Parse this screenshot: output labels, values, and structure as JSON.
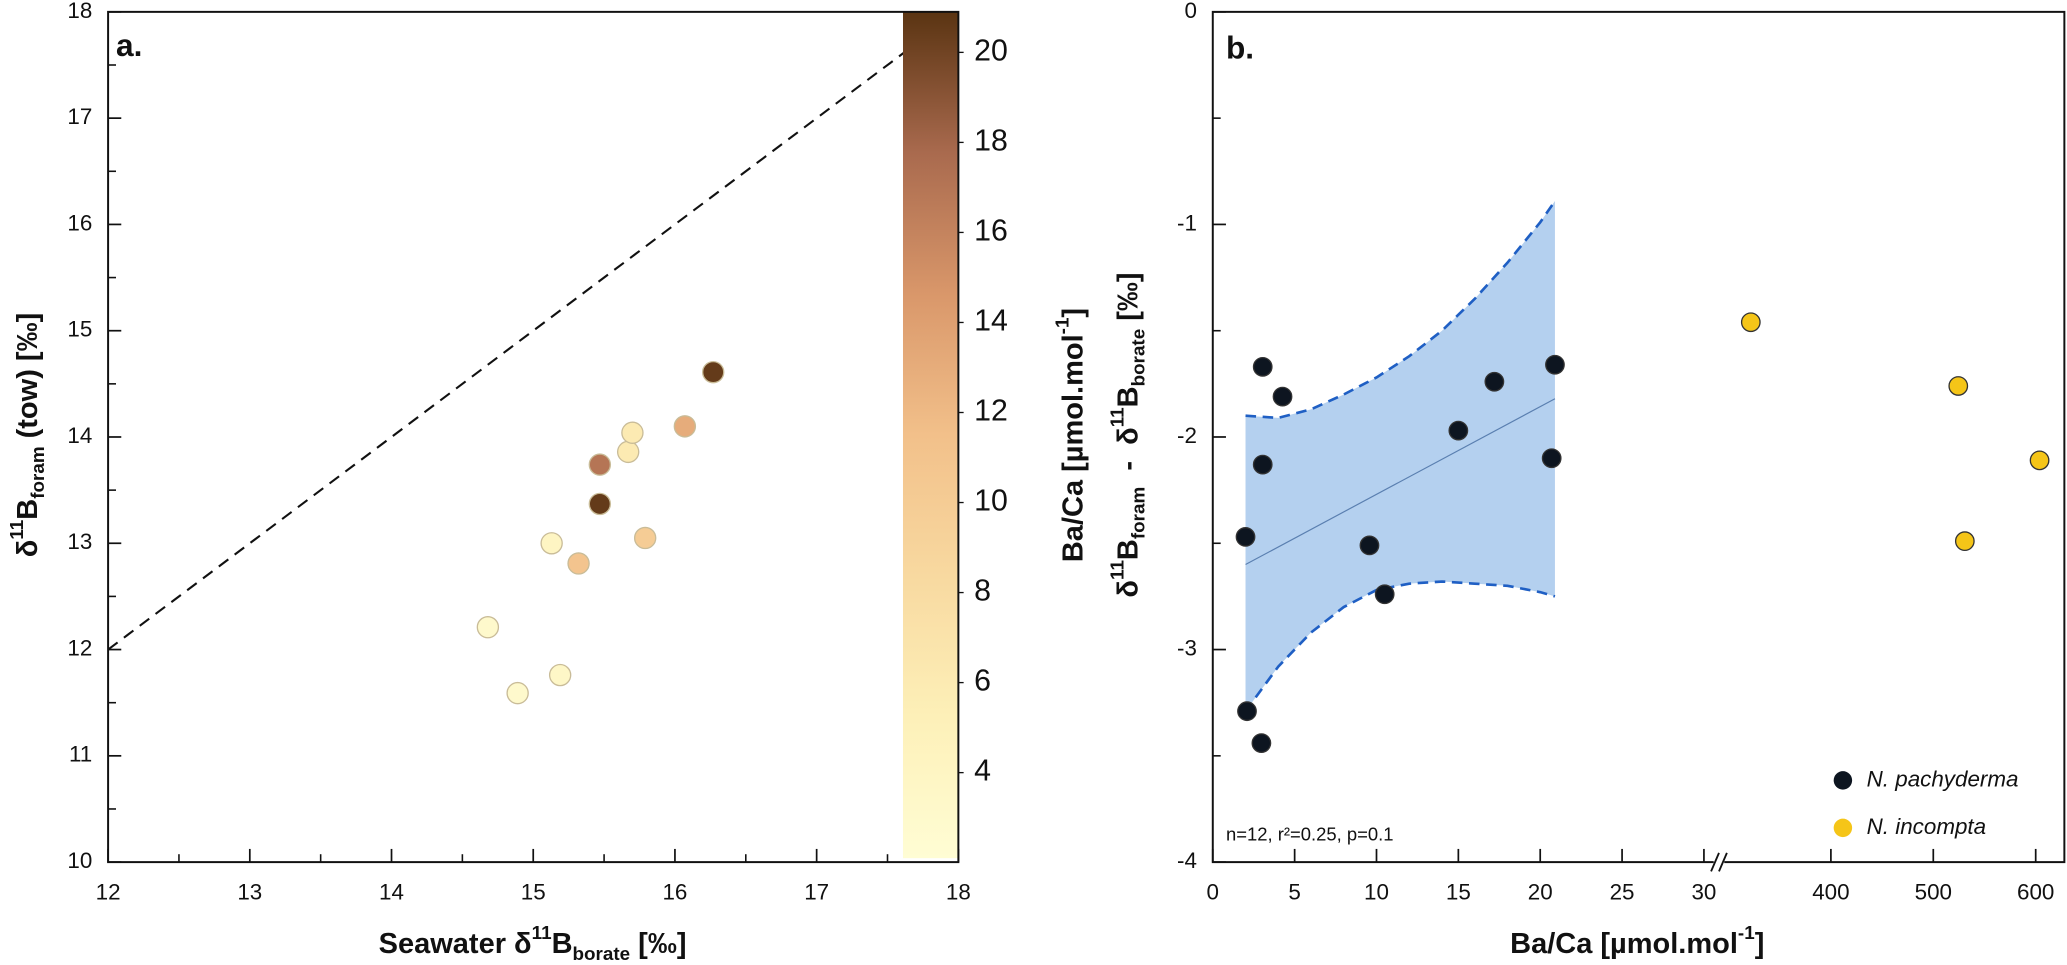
{
  "chart_data": [
    {
      "type": "scatter",
      "panel_label": "a.",
      "xlabel": [
        {
          "text": "Seawater δ"
        },
        {
          "text": "11",
          "pos": "sup"
        },
        {
          "text": "B"
        },
        {
          "text": "borate",
          "pos": "sub"
        },
        {
          "text": " [‰]"
        }
      ],
      "ylabel": [
        {
          "text": "δ"
        },
        {
          "text": "11",
          "pos": "sup"
        },
        {
          "text": "B"
        },
        {
          "text": "foram",
          "pos": "sub"
        },
        {
          "text": " (tow) [‰]"
        }
      ],
      "xlim": [
        12,
        18
      ],
      "xticks": [
        12,
        13,
        14,
        15,
        16,
        17,
        18
      ],
      "minor_xticks": [
        12.5,
        13.5,
        14.5,
        15.5,
        16.5,
        17.5
      ],
      "ylim": [
        10,
        18
      ],
      "yticks": [
        10,
        11,
        12,
        13,
        14,
        15,
        16,
        17,
        18
      ],
      "minor_yticks": [
        10.5,
        11.5,
        12.5,
        13.5,
        14.5,
        15.5,
        16.5,
        17.5
      ],
      "marker_edge": "#c9bc98",
      "series": [
        {
          "x": [
            14.68,
            14.89,
            15.19,
            15.13,
            15.32,
            15.47,
            15.47,
            15.67,
            15.7,
            15.79,
            16.07,
            16.27
          ],
          "values": [
            12.21,
            11.59,
            11.76,
            13.0,
            12.81,
            13.74,
            13.37,
            13.86,
            14.04,
            13.05,
            14.1,
            14.61
          ],
          "color_values": [
            3,
            3,
            3.5,
            4,
            11,
            17,
            20.5,
            6,
            6,
            10,
            13,
            20.5
          ]
        }
      ],
      "reference_line": {
        "x": [
          12,
          18
        ],
        "y": [
          12,
          18
        ],
        "color": "#111",
        "dashed": true
      },
      "colorbar": {
        "label": [
          {
            "text": "Ba/Ca [µmol.mol"
          },
          {
            "text": "-1",
            "pos": "sup"
          },
          {
            "text": "]"
          }
        ],
        "lim": [
          2.1,
          20.9
        ],
        "ticks": [
          4,
          6,
          8,
          10,
          12,
          14,
          16,
          18,
          20
        ],
        "colors": [
          "#fffdd4",
          "#fdf0b8",
          "#f8d9a0",
          "#f2c08a",
          "#d9976a",
          "#a96a4e",
          "#5a3412"
        ]
      }
    },
    {
      "type": "scatter",
      "panel_label": "b.",
      "xlabel": [
        {
          "text": "Ba/Ca [µmol.mol"
        },
        {
          "text": "-1",
          "pos": "sup"
        },
        {
          "text": "]"
        }
      ],
      "ylabel": [
        {
          "text": "δ"
        },
        {
          "text": "11",
          "pos": "sup"
        },
        {
          "text": "B"
        },
        {
          "text": "foram",
          "pos": "sub"
        },
        {
          "text": "  -  δ"
        },
        {
          "text": "11",
          "pos": "sup"
        },
        {
          "text": "B"
        },
        {
          "text": "borate",
          "pos": "sub"
        },
        {
          "text": " [‰]"
        }
      ],
      "x_segments": [
        {
          "xlim": [
            0,
            31
          ],
          "xticks": [
            0,
            5,
            10,
            15,
            20,
            25,
            30
          ]
        },
        {
          "xlim": [
            292,
            628
          ],
          "xticks": [
            400,
            500,
            600
          ]
        }
      ],
      "ylim": [
        -4,
        0
      ],
      "yticks": [
        -4,
        -3,
        -2,
        -1,
        0
      ],
      "minor_yticks": [
        -3.5,
        -2.5,
        -1.5,
        -0.5
      ],
      "marker_edge": "#333",
      "legend": "lower right",
      "series": [
        {
          "name": "N. pachyderma",
          "color": "#0d1520",
          "x": [
            2.0,
            3.05,
            3.05,
            2.09,
            2.97,
            4.26,
            9.57,
            10.5,
            15.0,
            17.2,
            20.9,
            20.7
          ],
          "values": [
            -2.47,
            -1.67,
            -2.13,
            -3.29,
            -3.44,
            -1.81,
            -2.51,
            -2.74,
            -1.97,
            -1.74,
            -1.66,
            -2.1
          ]
        },
        {
          "name": "N. incompta",
          "color": "#f5c518",
          "x": [
            321.8,
            524.4,
            530.8,
            603.8
          ],
          "values": [
            -1.46,
            -1.76,
            -2.49,
            -2.11
          ]
        }
      ],
      "fit": {
        "x": [
          2,
          20.9
        ],
        "y": [
          -2.6,
          -1.82
        ],
        "color": "#5a7fb0"
      },
      "band": {
        "x": [
          2,
          4,
          6,
          8,
          10,
          12,
          14,
          16,
          18,
          20,
          20.9
        ],
        "upper": [
          -1.9,
          -1.91,
          -1.87,
          -1.8,
          -1.72,
          -1.62,
          -1.5,
          -1.35,
          -1.18,
          -0.99,
          -0.89
        ],
        "lower": [
          -3.29,
          -3.08,
          -2.92,
          -2.8,
          -2.72,
          -2.69,
          -2.68,
          -2.69,
          -2.7,
          -2.73,
          -2.75
        ],
        "fill": "#b4d0ef",
        "edge": "#1f5fc4"
      },
      "annotation": "n=12, r²=0.25, p=0.1"
    }
  ]
}
